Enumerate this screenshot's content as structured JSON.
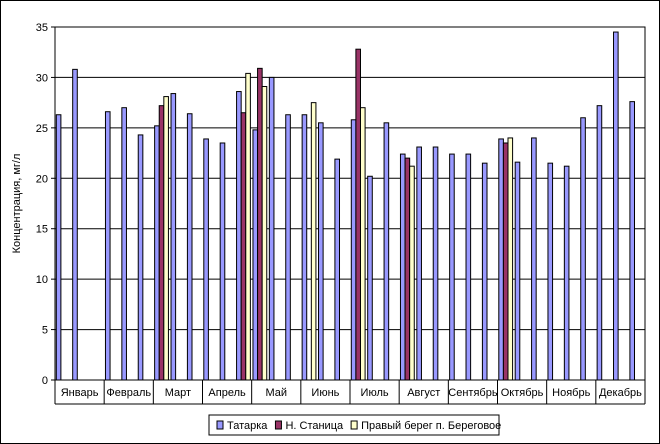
{
  "chart_data": {
    "type": "bar",
    "ylabel": "Концентрация, мг/л",
    "ylim": [
      0,
      35
    ],
    "yticks": [
      0,
      5,
      10,
      15,
      20,
      25,
      30,
      35
    ],
    "grid": true,
    "legend_position": "bottom",
    "categories": [
      "Январь",
      "Февраль",
      "Март",
      "Апрель",
      "Май",
      "Июнь",
      "Июль",
      "Август",
      "Сентябрь",
      "Октябрь",
      "Ноябрь",
      "Декабрь"
    ],
    "samples_per_month": 3,
    "series": [
      {
        "name": "Татарка",
        "color": "#9999FF",
        "values": [
          [
            26.3,
            30.8,
            null
          ],
          [
            26.6,
            27.0,
            24.3
          ],
          [
            25.2,
            28.4,
            26.4
          ],
          [
            23.9,
            23.5,
            28.6
          ],
          [
            24.8,
            30.0,
            26.3
          ],
          [
            26.3,
            25.5,
            21.9
          ],
          [
            25.8,
            20.2,
            25.5
          ],
          [
            22.4,
            23.1,
            23.1
          ],
          [
            22.4,
            22.4,
            21.5
          ],
          [
            23.9,
            21.6,
            24.0
          ],
          [
            21.5,
            21.2,
            26.0
          ],
          [
            27.2,
            34.5,
            27.6
          ]
        ]
      },
      {
        "name": "Н. Станица",
        "color": "#993366",
        "values": [
          [
            null,
            null,
            null
          ],
          [
            null,
            null,
            null
          ],
          [
            27.2,
            null,
            null
          ],
          [
            null,
            null,
            26.5
          ],
          [
            30.9,
            null,
            null
          ],
          [
            null,
            null,
            null
          ],
          [
            32.8,
            null,
            null
          ],
          [
            22.0,
            null,
            null
          ],
          [
            null,
            null,
            null
          ],
          [
            23.5,
            null,
            null
          ],
          [
            null,
            null,
            null
          ],
          [
            null,
            null,
            null
          ]
        ]
      },
      {
        "name": "Правый берег п. Береговое",
        "color": "#FFFFCC",
        "values": [
          [
            null,
            null,
            null
          ],
          [
            null,
            null,
            null
          ],
          [
            28.1,
            null,
            null
          ],
          [
            null,
            null,
            30.4
          ],
          [
            29.1,
            null,
            null
          ],
          [
            27.5,
            null,
            null
          ],
          [
            27.0,
            null,
            null
          ],
          [
            21.2,
            null,
            null
          ],
          [
            null,
            null,
            null
          ],
          [
            24.0,
            null,
            null
          ],
          [
            null,
            null,
            null
          ],
          [
            null,
            null,
            null
          ]
        ]
      }
    ]
  }
}
